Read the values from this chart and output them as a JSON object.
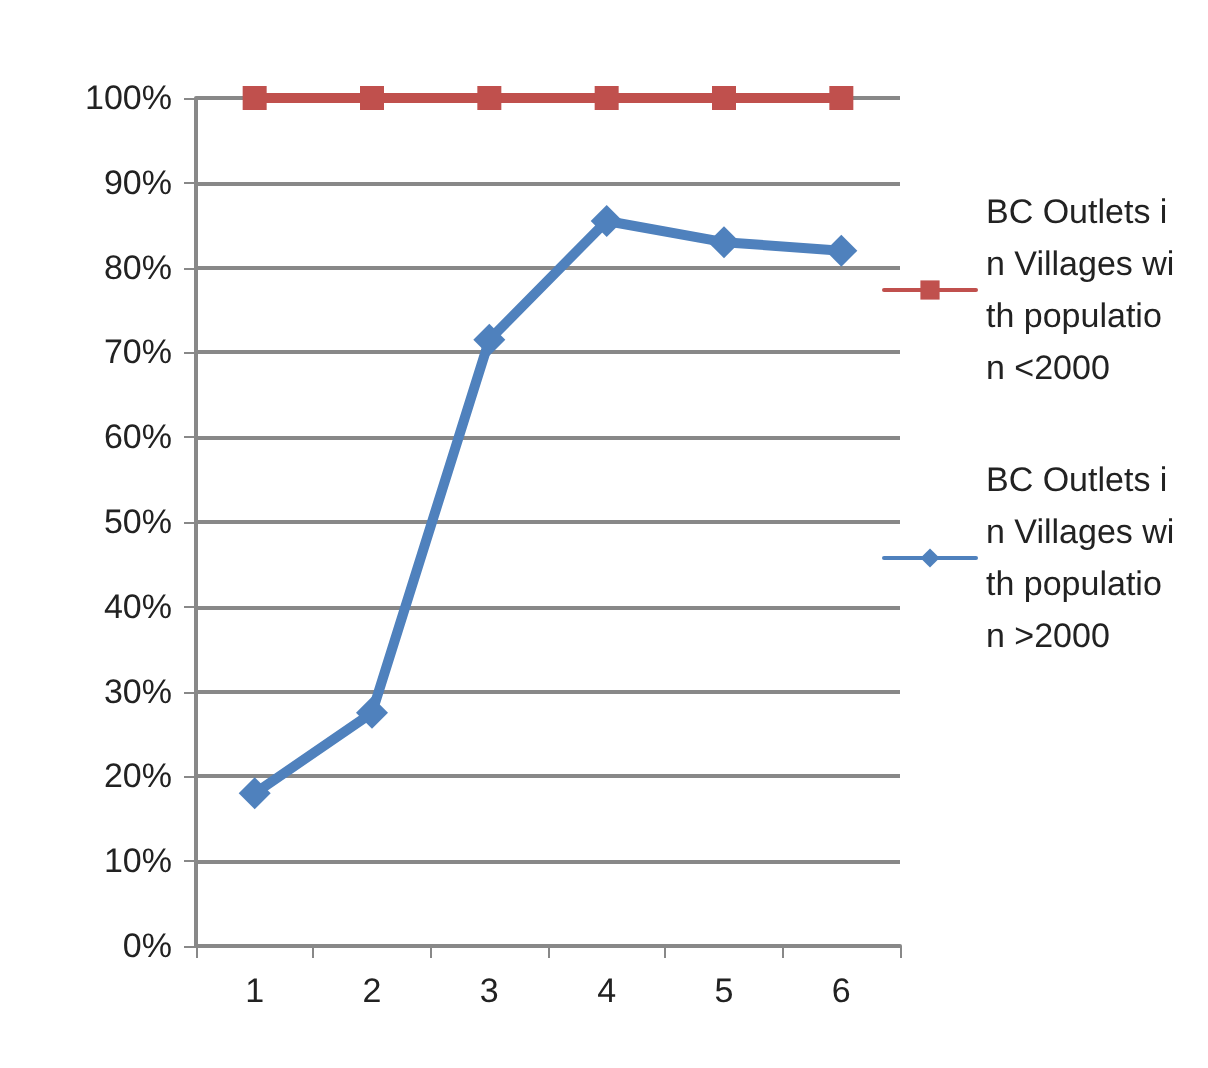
{
  "chart_data": {
    "type": "line",
    "categories": [
      "1",
      "2",
      "3",
      "4",
      "5",
      "6"
    ],
    "series": [
      {
        "name": "BC Outlets in Villages with population <2000",
        "color": "#c0504d",
        "marker": "square",
        "values": [
          100,
          100,
          100,
          100,
          100,
          100
        ]
      },
      {
        "name": "BC Outlets in Villages with population >2000",
        "color": "#4f81bd",
        "marker": "diamond",
        "values": [
          18,
          27.5,
          71.5,
          85.5,
          83,
          82
        ]
      }
    ],
    "ylim": [
      0,
      100
    ],
    "yticks": [
      {
        "value": 0,
        "label": "0%"
      },
      {
        "value": 10,
        "label": "10%"
      },
      {
        "value": 20,
        "label": "20%"
      },
      {
        "value": 30,
        "label": "30%"
      },
      {
        "value": 40,
        "label": "40%"
      },
      {
        "value": 50,
        "label": "50%"
      },
      {
        "value": 60,
        "label": "60%"
      },
      {
        "value": 70,
        "label": "70%"
      },
      {
        "value": 80,
        "label": "80%"
      },
      {
        "value": 90,
        "label": "90%"
      },
      {
        "value": 100,
        "label": "100%"
      }
    ],
    "grid": "y",
    "legend": "right",
    "line_style": "solid"
  }
}
